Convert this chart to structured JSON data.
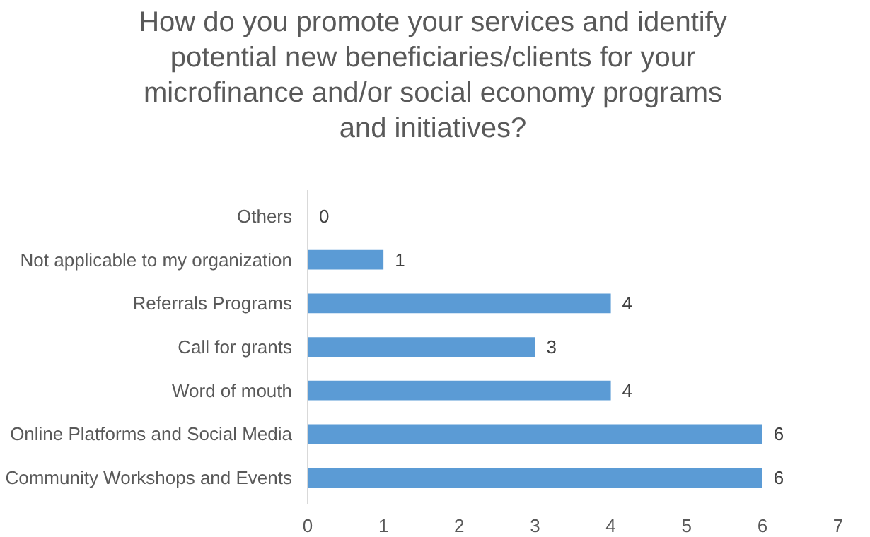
{
  "chart_data": {
    "type": "bar",
    "orientation": "horizontal",
    "title": "How do you promote your services and identify\npotential new beneficiaries/clients for your\nmicrofinance and/or social economy programs\nand initiatives?",
    "categories": [
      "Others",
      "Not applicable to my organization",
      "Referrals Programs",
      "Call for grants",
      "Word of mouth",
      "Online Platforms and Social Media",
      "Community Workshops and Events"
    ],
    "values": [
      0,
      1,
      4,
      3,
      4,
      6,
      6
    ],
    "color": "#5b9bd5",
    "xlim": [
      0,
      7
    ],
    "xticks": [
      0,
      1,
      2,
      3,
      4,
      5,
      6,
      7
    ],
    "data_labels": true,
    "grid": false
  }
}
